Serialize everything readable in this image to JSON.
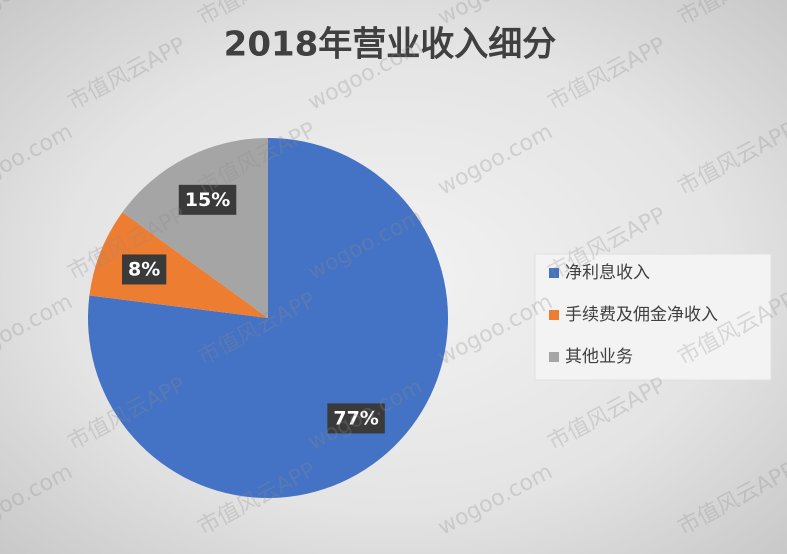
{
  "chart_data": {
    "type": "pie",
    "title": "2018年营业收入细分",
    "categories": [
      "净利息收入",
      "手续费及佣金净收入",
      "其他业务"
    ],
    "values": [
      77,
      8,
      15
    ],
    "value_labels": [
      "77%",
      "8%",
      "15%"
    ],
    "colors": [
      "#4472c4",
      "#ed7d31",
      "#a5a5a5"
    ],
    "legend": "right"
  },
  "watermark": [
    "wogoo.com",
    "市值风云APP"
  ]
}
